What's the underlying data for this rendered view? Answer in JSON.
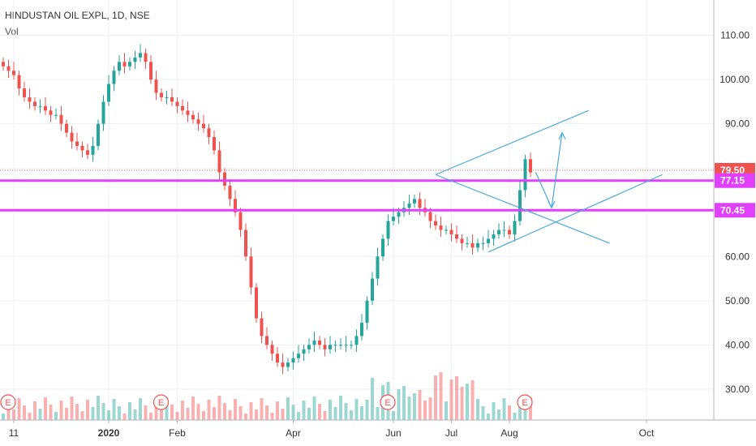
{
  "header": {
    "title": "HINDUSTAN OIL EXPL, 1D, NSE",
    "indicator": "Vol"
  },
  "colors": {
    "up": "#26a69a",
    "down": "#ef5350",
    "level": "#e040fb",
    "trend": "#4aa8e0",
    "last": "#ef5350"
  },
  "chart_data": {
    "type": "candlestick",
    "title": "HINDUSTAN OIL EXPL, 1D, NSE",
    "ylim": [
      23,
      118
    ],
    "y_ticks": [
      "110.00",
      "100.00",
      "90.00",
      "80.00",
      "70.00",
      "60.00",
      "50.00",
      "40.00",
      "30.00"
    ],
    "x_ticks": [
      "11",
      "2020",
      "Feb",
      "Apr",
      "Jun",
      "Jul",
      "Aug",
      "Oct"
    ],
    "series": [
      {
        "name": "Price",
        "close": [
          103,
          102,
          101,
          98,
          96,
          95,
          94,
          94,
          93,
          92,
          92,
          90,
          88,
          86,
          85,
          84,
          83,
          85,
          90,
          95,
          99,
          102,
          104,
          103,
          104,
          105,
          106,
          104,
          100,
          97,
          96,
          96,
          95,
          94,
          93,
          92,
          91,
          90,
          89,
          87,
          84,
          79,
          76,
          73,
          70,
          66,
          60,
          53,
          46,
          42,
          40,
          38,
          36,
          35,
          36,
          37,
          38,
          39,
          40,
          41,
          40,
          39,
          40,
          40,
          40,
          40,
          40,
          42,
          45,
          50,
          55,
          60,
          64,
          68,
          69,
          70,
          71,
          72,
          73,
          71,
          70,
          68,
          67,
          66,
          66,
          65,
          64,
          63,
          63,
          62,
          63,
          63,
          64,
          65,
          66,
          66,
          65,
          68,
          75,
          82,
          79
        ]
      }
    ],
    "price_labels": [
      {
        "label": "79.50",
        "value": 79.5,
        "kind": "last"
      },
      {
        "label": "77.15",
        "value": 77.15,
        "kind": "level"
      },
      {
        "label": "70.45",
        "value": 70.45,
        "kind": "level"
      }
    ],
    "earnings_markers": [
      {
        "label": "E",
        "index": 0
      },
      {
        "label": "E",
        "index": 29
      },
      {
        "label": "E",
        "index": 72
      },
      {
        "label": "E",
        "index": 98
      }
    ]
  }
}
